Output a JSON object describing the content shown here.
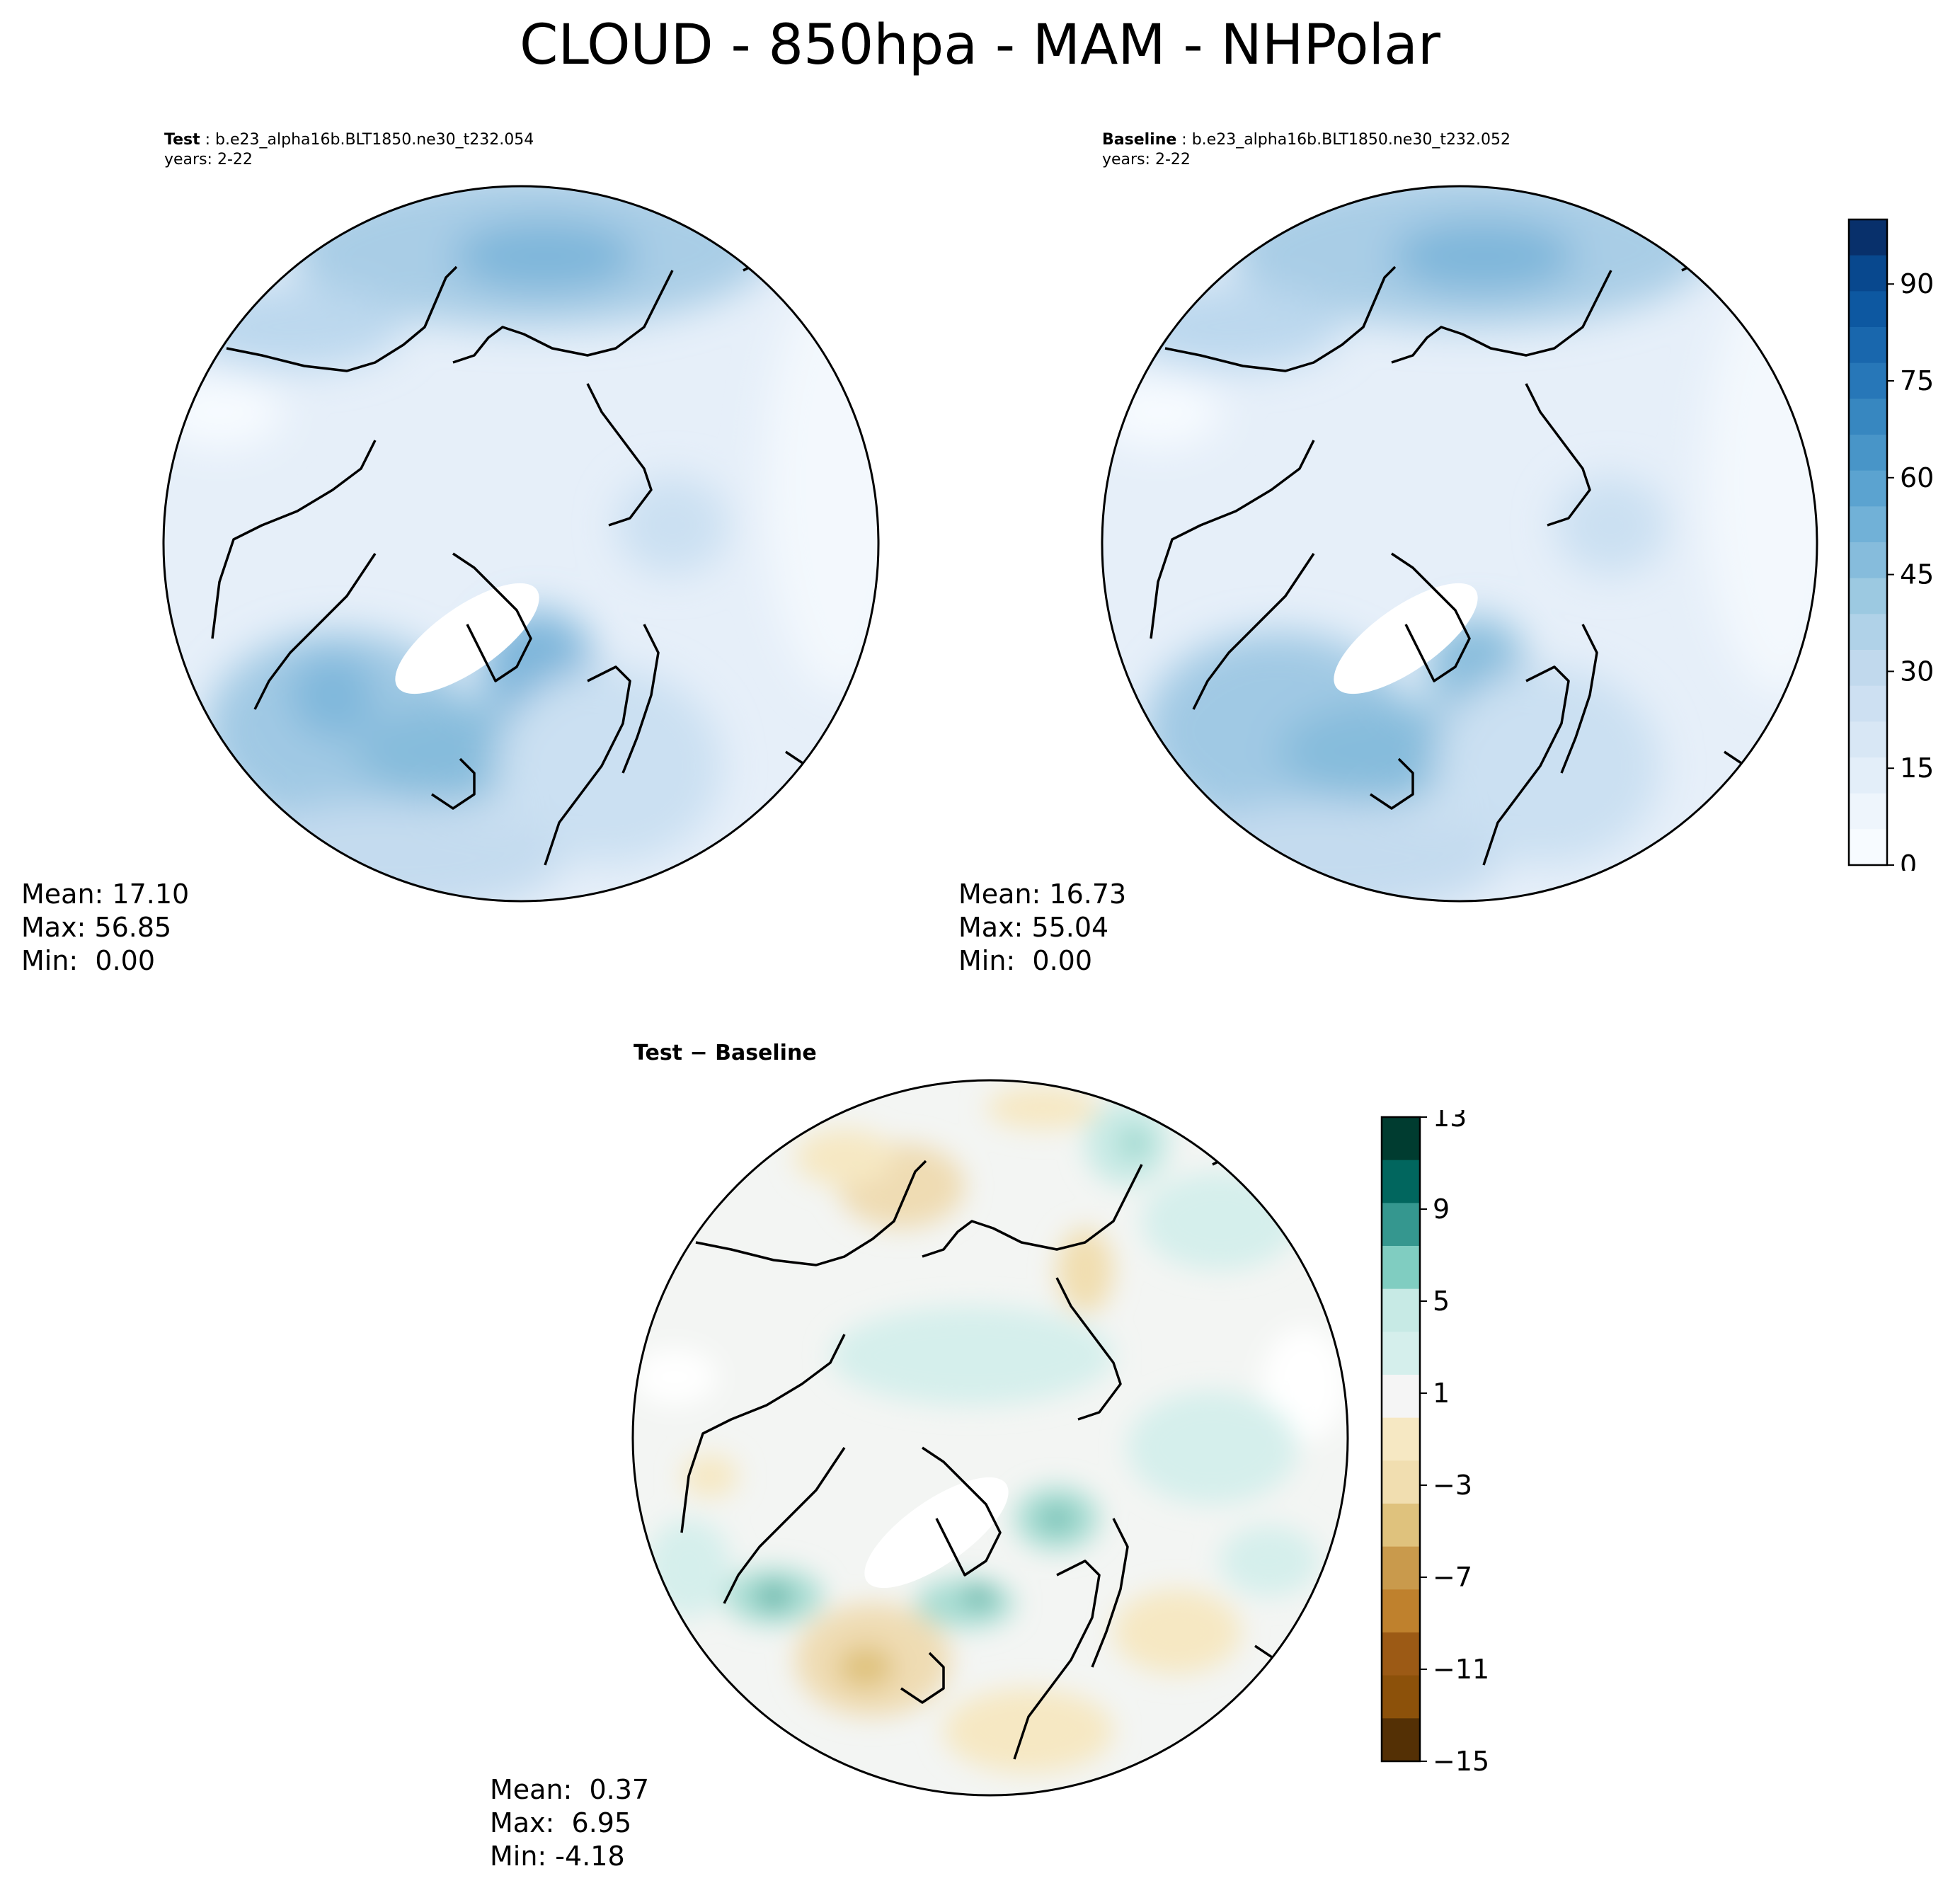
{
  "title": "CLOUD - 850hpa - MAM - NHPolar",
  "panels": {
    "test": {
      "label": "Test",
      "case": "b.e23_alpha16b.BLT1850.ne30_t232.054",
      "years": "years: 2-22",
      "stats": {
        "mean": "Mean: 17.10",
        "max": "Max: 56.85",
        "min": "Min:  0.00"
      }
    },
    "baseline": {
      "label": "Baseline",
      "case": "b.e23_alpha16b.BLT1850.ne30_t232.052",
      "years": "years: 2-22",
      "stats": {
        "mean": "Mean: 16.73",
        "max": "Max: 55.04",
        "min": "Min:  0.00"
      }
    },
    "diff": {
      "title_a": "Test",
      "title_sep": "−",
      "title_b": "Baseline",
      "stats": {
        "mean": "Mean:  0.37",
        "max": "Max:  6.95",
        "min": "Min: -4.18"
      }
    }
  },
  "colorbars": {
    "main": {
      "range": [
        0,
        100
      ],
      "ticks": [
        0,
        15,
        30,
        45,
        60,
        75,
        90
      ],
      "tick_labels": [
        "0",
        "15",
        "30",
        "45",
        "60",
        "75",
        "90"
      ],
      "colors": [
        "#f7fbff",
        "#eef5fc",
        "#e3eef9",
        "#d8e7f5",
        "#cde0f2",
        "#c1d9ed",
        "#b0d2e8",
        "#9cc9e1",
        "#86bcdc",
        "#71b1d7",
        "#5ba3d0",
        "#4895c8",
        "#3787c0",
        "#2777b8",
        "#1967ad",
        "#0d58a1",
        "#08488e",
        "#08306b"
      ]
    },
    "diff": {
      "range": [
        -15,
        13
      ],
      "ticks": [
        13,
        9,
        5,
        1,
        -3,
        -7,
        -11,
        -15
      ],
      "tick_labels": [
        "13",
        "9",
        "5",
        "1",
        "−3",
        "−7",
        "−11",
        "−15"
      ],
      "colors": [
        "#003c30",
        "#01665e",
        "#35978f",
        "#80cdc1",
        "#c7eae5",
        "#d5efec",
        "#f5f5f5",
        "#f6e8c3",
        "#f1deb0",
        "#dfc27d",
        "#c99a4c",
        "#bf812d",
        "#9c5a15",
        "#8c510a",
        "#543005"
      ]
    }
  }
}
